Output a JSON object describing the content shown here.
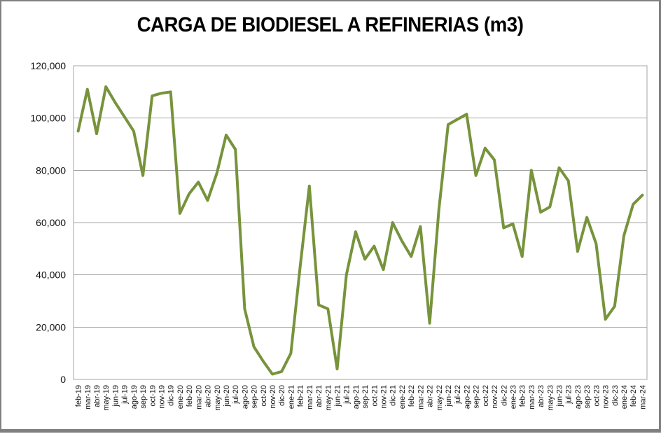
{
  "window": {
    "background": "#ffffff",
    "frame_border_color": "#808080"
  },
  "chart_data": {
    "type": "line",
    "title": "CARGA DE BIODIESEL A REFINERIAS (m3)",
    "xlabel": "",
    "ylabel": "",
    "ylim": [
      0,
      120000
    ],
    "grid": "horizontal",
    "legend": "none",
    "line_color": "#77933C",
    "gridline_color": "#A6A6A6",
    "ytick_values": [
      0,
      20000,
      40000,
      60000,
      80000,
      100000,
      120000
    ],
    "ytick_labels": [
      "0",
      "20,000",
      "40,000",
      "60,000",
      "80,000",
      "100,000",
      "120,000"
    ],
    "categories": [
      "feb-19",
      "mar-19",
      "abr-19",
      "may-19",
      "jun-19",
      "jul-19",
      "ago-19",
      "sep-19",
      "oct-19",
      "nov-19",
      "dic-19",
      "ene-20",
      "feb-20",
      "mar-20",
      "abr-20",
      "may-20",
      "jun-20",
      "jul-20",
      "ago-20",
      "sep-20",
      "oct-20",
      "nov-20",
      "dic-20",
      "ene-21",
      "feb-21",
      "mar-21",
      "abr-21",
      "may-21",
      "jun-21",
      "jul-21",
      "ago-21",
      "sep-21",
      "oct-21",
      "nov-21",
      "dic-21",
      "ene-22",
      "feb-22",
      "mar-22",
      "abr-22",
      "may-22",
      "jun-22",
      "jul-22",
      "ago-22",
      "sep-22",
      "oct-22",
      "nov-22",
      "dic-22",
      "ene-23",
      "feb-23",
      "mar-23",
      "abr-23",
      "may-23",
      "jun-23",
      "jul-23",
      "ago-23",
      "sep-23",
      "oct-23",
      "nov-23",
      "dic-23",
      "ene-24",
      "feb-24",
      "mar-24"
    ],
    "values": [
      95000,
      111000,
      94000,
      112000,
      106000,
      100500,
      95000,
      78000,
      108500,
      109500,
      110000,
      63500,
      71000,
      75500,
      68500,
      79000,
      93500,
      88000,
      27000,
      12500,
      7000,
      2000,
      3000,
      10000,
      43000,
      74000,
      28500,
      27000,
      4000,
      40000,
      56500,
      46000,
      51000,
      42000,
      60000,
      53000,
      47000,
      58500,
      21500,
      65000,
      97500,
      99500,
      101500,
      78000,
      88500,
      84000,
      58000,
      59500,
      47000,
      80000,
      64000,
      66000,
      81000,
      76000,
      49000,
      62000,
      52000,
      23000,
      28000,
      55000,
      67000,
      70500
    ]
  }
}
